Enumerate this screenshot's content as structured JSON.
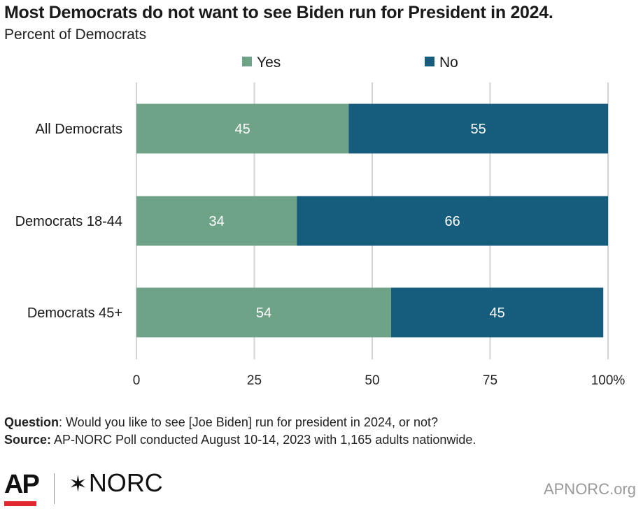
{
  "title": "Most Democrats do not want to see Biden run for President in 2024.",
  "subtitle": "Percent of Democrats",
  "chart_data": {
    "type": "bar",
    "orientation": "horizontal",
    "stacked": true,
    "categories": [
      "All Democrats",
      "Democrats 18-44",
      "Democrats 45+"
    ],
    "series": [
      {
        "name": "Yes",
        "values": [
          45,
          34,
          54
        ],
        "color": "#6fa388"
      },
      {
        "name": "No",
        "values": [
          55,
          66,
          45
        ],
        "color": "#165c7d"
      }
    ],
    "xlim": [
      0,
      100
    ],
    "xticks": [
      "0",
      "25",
      "50",
      "75",
      "100%"
    ],
    "xtick_values": [
      0,
      25,
      50,
      75,
      100
    ],
    "grid": true,
    "legend_position": "top"
  },
  "notes": {
    "question_label": "Question",
    "question_text": ": Would you like to see [Joe Biden] run for president in 2024, or not?",
    "source_label": "Source:",
    "source_text": " AP-NORC Poll conducted August 10-14, 2023 with 1,165 adults nationwide."
  },
  "footer": {
    "ap_logo": "AP",
    "norc_logo": "NORC",
    "norc_icon": "asterisk-icon",
    "website": "APNORC.org"
  }
}
